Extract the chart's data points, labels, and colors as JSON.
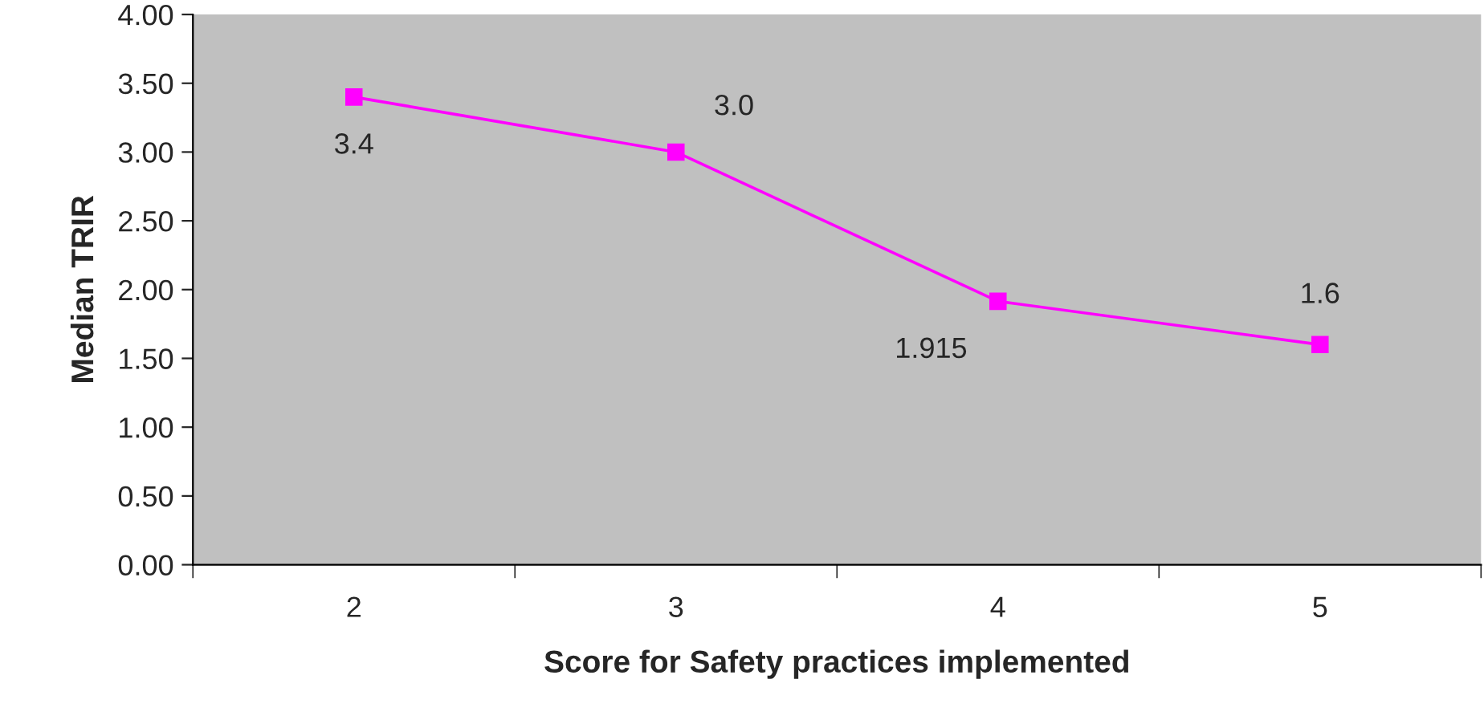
{
  "chart_data": {
    "type": "line",
    "xlabel": "Score for Safety practices implemented",
    "ylabel": "Median TRIR",
    "categories": [
      "2",
      "3",
      "4",
      "5"
    ],
    "series": [
      {
        "color": "#ff00ff",
        "values": [
          3.4,
          3.0,
          1.915,
          1.6
        ],
        "value_labels": [
          "3.4",
          "3.0",
          "1.915",
          "1.6"
        ]
      }
    ],
    "ylim": [
      0,
      4
    ],
    "yticks": [
      {
        "value": 0,
        "label": "0.00"
      },
      {
        "value": 0.5,
        "label": "0.50"
      },
      {
        "value": 1,
        "label": "1.00"
      },
      {
        "value": 1.5,
        "label": "1.50"
      },
      {
        "value": 2,
        "label": "2.00"
      },
      {
        "value": 2.5,
        "label": "2.50"
      },
      {
        "value": 3,
        "label": "3.00"
      },
      {
        "value": 3.5,
        "label": "3.50"
      },
      {
        "value": 4,
        "label": "4.00"
      }
    ],
    "marker": "square",
    "line_style": "solid",
    "grid": false,
    "legend": false
  }
}
